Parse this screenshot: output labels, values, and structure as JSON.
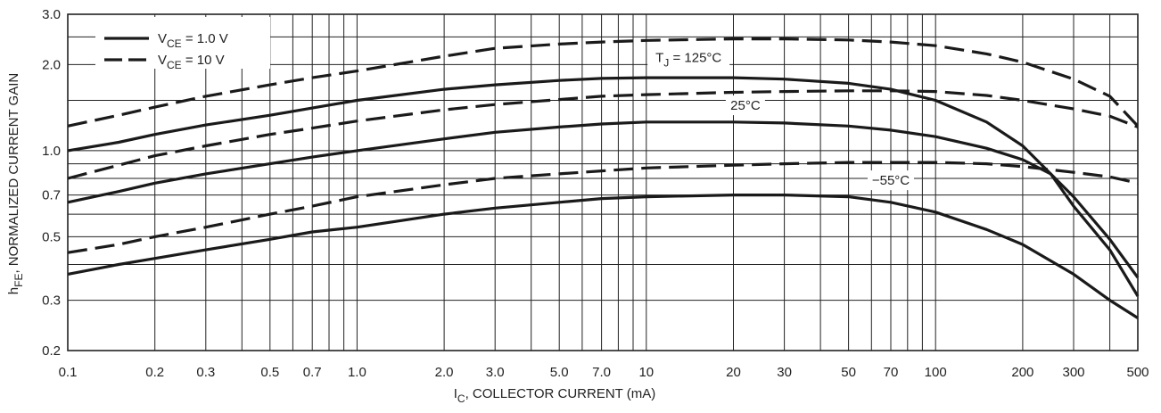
{
  "chart_data": {
    "type": "line",
    "title": "",
    "xlabel": {
      "main": "I",
      "sub": "C",
      "rest": ", COLLECTOR CURRENT (mA)"
    },
    "ylabel": {
      "main": "h",
      "sub": "FE",
      "rest": ", NORMALIZED CURRENT GAIN"
    },
    "xscale": "log",
    "yscale": "log",
    "xlim": [
      0.1,
      500
    ],
    "ylim": [
      0.2,
      3.0
    ],
    "grid": true,
    "x_ticks": [
      {
        "value": 0.1,
        "label": "0.1"
      },
      {
        "value": 0.2,
        "label": "0.2"
      },
      {
        "value": 0.3,
        "label": "0.3"
      },
      {
        "value": 0.5,
        "label": "0.5"
      },
      {
        "value": 0.7,
        "label": "0.7"
      },
      {
        "value": 1,
        "label": "1.0"
      },
      {
        "value": 2,
        "label": "2.0"
      },
      {
        "value": 3,
        "label": "3.0"
      },
      {
        "value": 5,
        "label": "5.0"
      },
      {
        "value": 7,
        "label": "7.0"
      },
      {
        "value": 10,
        "label": "10"
      },
      {
        "value": 20,
        "label": "20"
      },
      {
        "value": 30,
        "label": "30"
      },
      {
        "value": 50,
        "label": "50"
      },
      {
        "value": 70,
        "label": "70"
      },
      {
        "value": 100,
        "label": "100"
      },
      {
        "value": 200,
        "label": "200"
      },
      {
        "value": 300,
        "label": "300"
      },
      {
        "value": 500,
        "label": "500"
      }
    ],
    "y_ticks": [
      {
        "value": 0.2,
        "label": "0.2"
      },
      {
        "value": 0.3,
        "label": "0.3"
      },
      {
        "value": 0.5,
        "label": "0.5"
      },
      {
        "value": 0.7,
        "label": "0.7"
      },
      {
        "value": 1.0,
        "label": "1.0"
      },
      {
        "value": 2.0,
        "label": "2.0"
      },
      {
        "value": 3.0,
        "label": "3.0"
      }
    ],
    "x_grid": [
      0.1,
      0.2,
      0.3,
      0.4,
      0.5,
      0.6,
      0.7,
      0.8,
      0.9,
      1,
      2,
      3,
      4,
      5,
      6,
      7,
      8,
      9,
      10,
      20,
      30,
      40,
      50,
      60,
      70,
      80,
      90,
      100,
      200,
      300,
      400,
      500
    ],
    "y_grid": [
      0.2,
      0.3,
      0.4,
      0.5,
      0.6,
      0.7,
      0.8,
      0.9,
      1.0,
      1.5,
      2.0,
      2.5,
      3.0
    ],
    "legend": {
      "position": "top-left",
      "entries": [
        {
          "main": "V",
          "sub": "CE",
          "rest": " = 1.0 V",
          "style": "solid"
        },
        {
          "main": "V",
          "sub": "CE",
          "rest": " = 10 V",
          "style": "dashed"
        }
      ]
    },
    "annotations": [
      {
        "main": "T",
        "sub": "J",
        "rest": " = 125°C",
        "x": 14,
        "y": 2.04
      },
      {
        "main": "25°C",
        "sub": "",
        "rest": "",
        "x": 22,
        "y": 1.39
      },
      {
        "main": "−55°C",
        "sub": "",
        "rest": "",
        "x": 70,
        "y": 0.76
      }
    ],
    "series": [
      {
        "style": "solid",
        "group": "125°C",
        "x": [
          0.1,
          0.15,
          0.2,
          0.3,
          0.5,
          0.7,
          1,
          2,
          3,
          5,
          7,
          10,
          20,
          30,
          50,
          70,
          100,
          150,
          200,
          300,
          400,
          500
        ],
        "y": [
          1.0,
          1.07,
          1.14,
          1.23,
          1.33,
          1.41,
          1.5,
          1.64,
          1.7,
          1.76,
          1.79,
          1.8,
          1.8,
          1.78,
          1.72,
          1.64,
          1.5,
          1.26,
          1.04,
          0.69,
          0.49,
          0.36
        ]
      },
      {
        "style": "dashed",
        "group": "125°C",
        "x": [
          0.1,
          0.15,
          0.2,
          0.3,
          0.5,
          0.7,
          1,
          2,
          3,
          5,
          7,
          10,
          20,
          30,
          50,
          70,
          100,
          150,
          200,
          300,
          400,
          500
        ],
        "y": [
          1.22,
          1.33,
          1.42,
          1.55,
          1.7,
          1.8,
          1.9,
          2.14,
          2.28,
          2.36,
          2.4,
          2.43,
          2.46,
          2.46,
          2.44,
          2.4,
          2.33,
          2.18,
          2.04,
          1.78,
          1.55,
          1.22
        ]
      },
      {
        "style": "solid",
        "group": "25°C",
        "x": [
          0.1,
          0.15,
          0.2,
          0.3,
          0.5,
          0.7,
          1,
          2,
          3,
          5,
          7,
          10,
          20,
          30,
          50,
          70,
          100,
          150,
          200,
          250,
          300,
          400,
          500
        ],
        "y": [
          0.66,
          0.72,
          0.77,
          0.83,
          0.9,
          0.95,
          1.0,
          1.1,
          1.16,
          1.21,
          1.24,
          1.26,
          1.26,
          1.25,
          1.22,
          1.18,
          1.12,
          1.02,
          0.93,
          0.83,
          0.64,
          0.45,
          0.31
        ]
      },
      {
        "style": "dashed",
        "group": "25°C",
        "x": [
          0.1,
          0.15,
          0.2,
          0.3,
          0.5,
          0.7,
          1,
          2,
          3,
          5,
          7,
          10,
          20,
          30,
          50,
          70,
          100,
          150,
          200,
          300,
          400,
          500
        ],
        "y": [
          0.8,
          0.89,
          0.96,
          1.04,
          1.14,
          1.2,
          1.27,
          1.39,
          1.45,
          1.51,
          1.55,
          1.57,
          1.6,
          1.61,
          1.62,
          1.62,
          1.61,
          1.56,
          1.5,
          1.4,
          1.32,
          1.21
        ]
      },
      {
        "style": "solid",
        "group": "−55°C",
        "x": [
          0.1,
          0.15,
          0.2,
          0.3,
          0.5,
          0.7,
          1,
          2,
          3,
          5,
          7,
          10,
          20,
          30,
          50,
          70,
          100,
          150,
          200,
          300,
          400,
          500
        ],
        "y": [
          0.37,
          0.4,
          0.42,
          0.45,
          0.49,
          0.52,
          0.54,
          0.6,
          0.63,
          0.66,
          0.68,
          0.69,
          0.7,
          0.7,
          0.69,
          0.66,
          0.61,
          0.53,
          0.47,
          0.37,
          0.3,
          0.26
        ]
      },
      {
        "style": "dashed",
        "group": "−55°C",
        "x": [
          0.1,
          0.15,
          0.2,
          0.3,
          0.5,
          0.7,
          1,
          2,
          3,
          5,
          7,
          10,
          20,
          30,
          50,
          70,
          100,
          150,
          200,
          300,
          400,
          500
        ],
        "y": [
          0.44,
          0.47,
          0.5,
          0.54,
          0.6,
          0.64,
          0.69,
          0.76,
          0.8,
          0.83,
          0.85,
          0.87,
          0.89,
          0.9,
          0.91,
          0.91,
          0.91,
          0.9,
          0.88,
          0.84,
          0.81,
          0.77
        ]
      }
    ]
  }
}
